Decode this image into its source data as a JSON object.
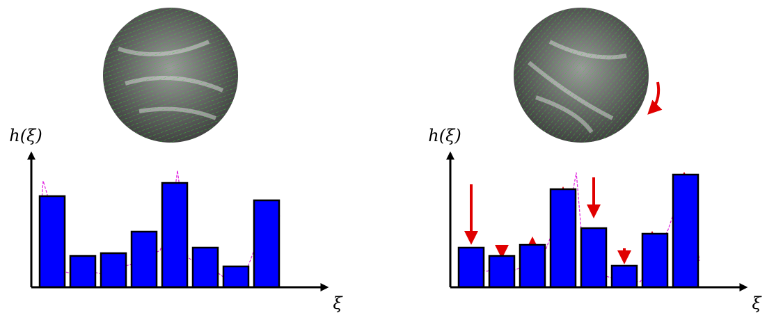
{
  "chart_data": [
    {
      "type": "bar",
      "y_label": "h(ξ)",
      "x_label": "ξ",
      "categories": [
        null,
        null,
        null,
        null,
        null,
        null,
        null,
        null
      ],
      "values": [
        131,
        45,
        49,
        80,
        150,
        57,
        30,
        125
      ],
      "color": "#0000ff",
      "ylim": [
        0,
        193
      ]
    },
    {
      "type": "bar",
      "y_label": "h(ξ)",
      "x_label": "ξ",
      "categories": [
        null,
        null,
        null,
        null,
        null,
        null,
        null,
        null
      ],
      "values": [
        57,
        45,
        61,
        141,
        85,
        31,
        77,
        162
      ],
      "color": "#0000ff",
      "ylim": [
        0,
        193
      ]
    }
  ]
}
